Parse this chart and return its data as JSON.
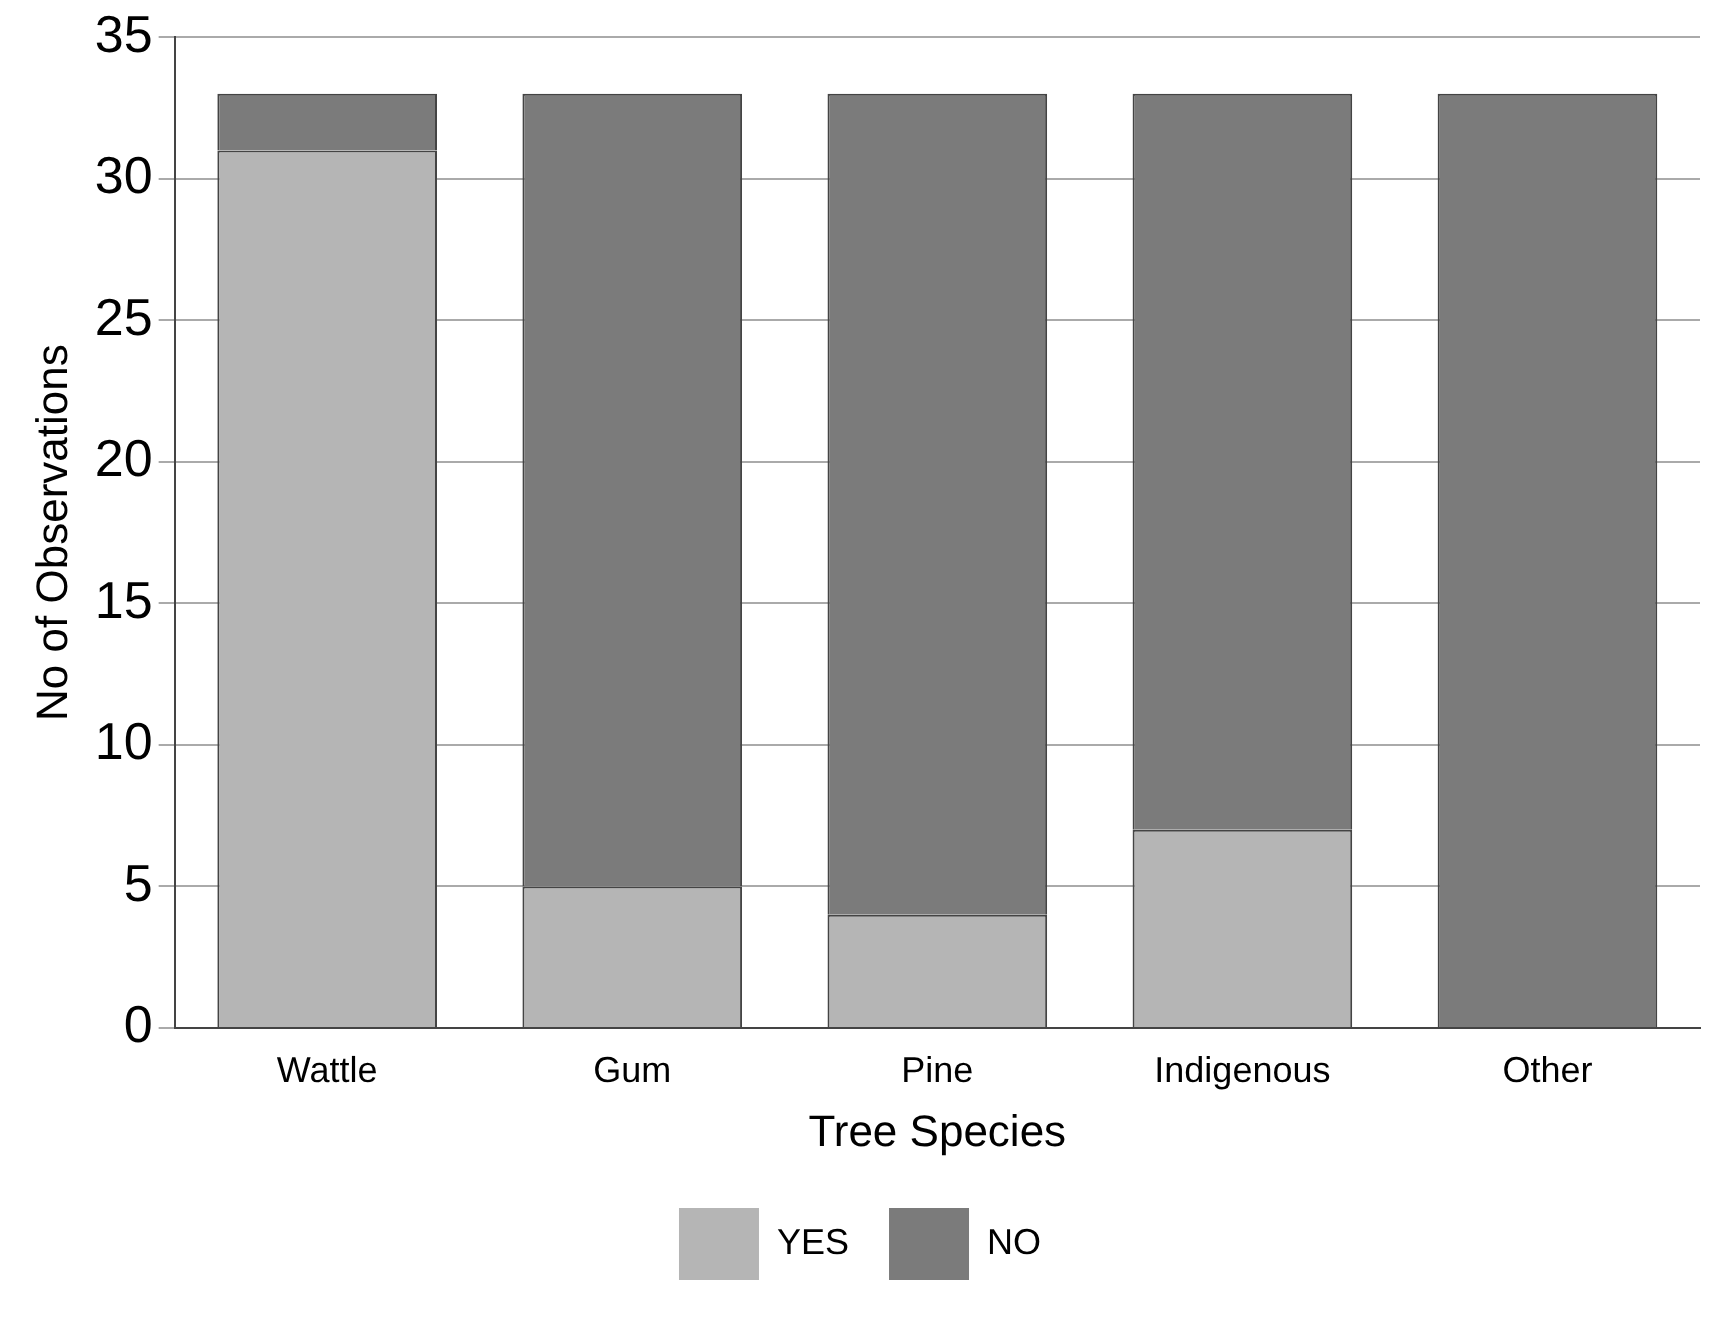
{
  "chart_data": {
    "type": "bar",
    "stacked": true,
    "xlabel": "Tree Species",
    "ylabel": "No of Observations",
    "categories": [
      "Wattle",
      "Gum",
      "Pine",
      "Indigenous",
      "Other"
    ],
    "series": [
      {
        "name": "YES",
        "color": "#b5b5b5",
        "values": [
          31,
          5,
          4,
          7,
          0
        ]
      },
      {
        "name": "NO",
        "color": "#7b7b7b",
        "values": [
          2,
          28,
          29,
          26,
          33
        ]
      }
    ],
    "ylim": [
      0,
      35
    ],
    "yticks": [
      0,
      5,
      10,
      15,
      20,
      25,
      30,
      35
    ],
    "grid": "y",
    "legend": "bottom"
  }
}
